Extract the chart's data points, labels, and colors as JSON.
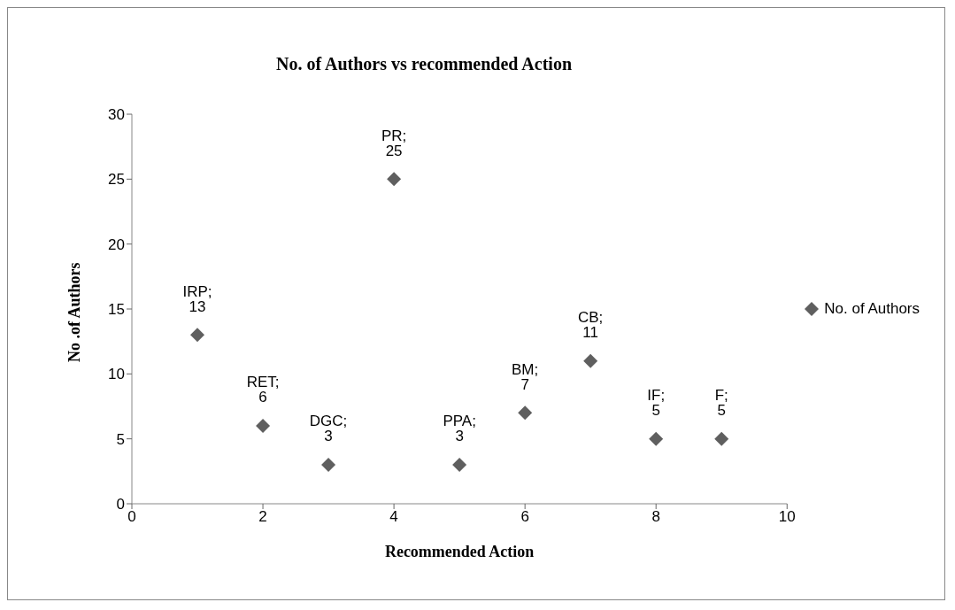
{
  "chart_data": {
    "type": "scatter",
    "title": "No. of Authors vs recommended Action",
    "xlabel": "Recommended Action",
    "ylabel": "No .of Authors",
    "x": [
      1,
      2,
      3,
      4,
      5,
      6,
      7,
      8,
      9
    ],
    "series": [
      {
        "name": "No. of Authors",
        "color": "#5f5f5f",
        "values": [
          13,
          6,
          3,
          25,
          3,
          7,
          11,
          5,
          5
        ],
        "value_labels": [
          "IRP; 13",
          "RET; 6",
          "DGC; 3",
          "PR; 25",
          "PPA; 3",
          "BM; 7",
          "CB; 11",
          "IF; 5",
          "F; 5"
        ]
      }
    ],
    "xlim": [
      0,
      10
    ],
    "xticks": [
      0,
      2,
      4,
      6,
      8,
      10
    ],
    "ylim": [
      0,
      30
    ],
    "yticks": [
      0,
      5,
      10,
      15,
      20,
      25,
      30
    ],
    "grid": false,
    "legend": "right",
    "marker": "diamond"
  }
}
